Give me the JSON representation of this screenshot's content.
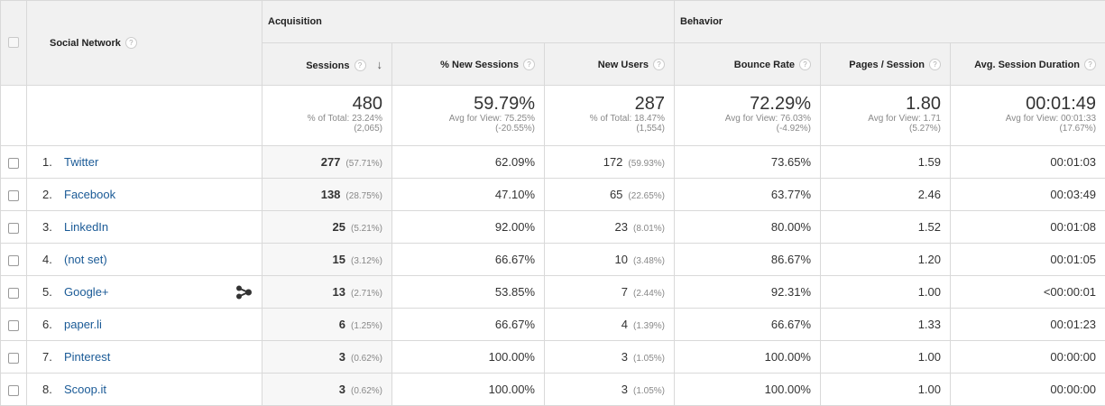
{
  "headers": {
    "dimension": "Social Network",
    "acquisition": "Acquisition",
    "behavior": "Behavior",
    "columns": [
      "Sessions",
      "% New Sessions",
      "New Users",
      "Bounce Rate",
      "Pages / Session",
      "Avg. Session Duration"
    ],
    "help_icon": "?",
    "sort_arrow": "↓"
  },
  "totals": [
    {
      "value": "480",
      "label": "% of Total: 23.24%",
      "detail": "(2,065)"
    },
    {
      "value": "59.79%",
      "label": "Avg for View: 75.25%",
      "detail": "(-20.55%)"
    },
    {
      "value": "287",
      "label": "% of Total: 18.47%",
      "detail": "(1,554)"
    },
    {
      "value": "72.29%",
      "label": "Avg for View: 76.03%",
      "detail": "(-4.92%)"
    },
    {
      "value": "1.80",
      "label": "Avg for View: 1.71",
      "detail": "(5.27%)"
    },
    {
      "value": "00:01:49",
      "label": "Avg for View: 00:01:33",
      "detail": "(17.67%)"
    }
  ],
  "rows": [
    {
      "index": "1.",
      "name": "Twitter",
      "sessions": "277",
      "sessions_pct": "(57.71%)",
      "new_sessions": "62.09%",
      "new_users": "172",
      "new_users_pct": "(59.93%)",
      "bounce_rate": "73.65%",
      "pages_per_session": "1.59",
      "avg_duration": "00:01:03"
    },
    {
      "index": "2.",
      "name": "Facebook",
      "sessions": "138",
      "sessions_pct": "(28.75%)",
      "new_sessions": "47.10%",
      "new_users": "65",
      "new_users_pct": "(22.65%)",
      "bounce_rate": "63.77%",
      "pages_per_session": "2.46",
      "avg_duration": "00:03:49"
    },
    {
      "index": "3.",
      "name": "LinkedIn",
      "sessions": "25",
      "sessions_pct": "(5.21%)",
      "new_sessions": "92.00%",
      "new_users": "23",
      "new_users_pct": "(8.01%)",
      "bounce_rate": "80.00%",
      "pages_per_session": "1.52",
      "avg_duration": "00:01:08"
    },
    {
      "index": "4.",
      "name": "(not set)",
      "sessions": "15",
      "sessions_pct": "(3.12%)",
      "new_sessions": "66.67%",
      "new_users": "10",
      "new_users_pct": "(3.48%)",
      "bounce_rate": "86.67%",
      "pages_per_session": "1.20",
      "avg_duration": "00:01:05"
    },
    {
      "index": "5.",
      "name": "Google+",
      "sessions": "13",
      "sessions_pct": "(2.71%)",
      "new_sessions": "53.85%",
      "new_users": "7",
      "new_users_pct": "(2.44%)",
      "bounce_rate": "92.31%",
      "pages_per_session": "1.00",
      "avg_duration": "<00:00:01",
      "has_flow_icon": true
    },
    {
      "index": "6.",
      "name": "paper.li",
      "sessions": "6",
      "sessions_pct": "(1.25%)",
      "new_sessions": "66.67%",
      "new_users": "4",
      "new_users_pct": "(1.39%)",
      "bounce_rate": "66.67%",
      "pages_per_session": "1.33",
      "avg_duration": "00:01:23"
    },
    {
      "index": "7.",
      "name": "Pinterest",
      "sessions": "3",
      "sessions_pct": "(0.62%)",
      "new_sessions": "100.00%",
      "new_users": "3",
      "new_users_pct": "(1.05%)",
      "bounce_rate": "100.00%",
      "pages_per_session": "1.00",
      "avg_duration": "00:00:00"
    },
    {
      "index": "8.",
      "name": "Scoop.it",
      "sessions": "3",
      "sessions_pct": "(0.62%)",
      "new_sessions": "100.00%",
      "new_users": "3",
      "new_users_pct": "(1.05%)",
      "bounce_rate": "100.00%",
      "pages_per_session": "1.00",
      "avg_duration": "00:00:00"
    }
  ],
  "icons": {
    "row_flow": "flow-visualization-icon",
    "help": "help-icon",
    "sort": "sort-descending-icon"
  },
  "colors": {
    "link": "#1a5a96",
    "header_bg": "#f1f1f1",
    "sorted_col_bg": "#f7f7f7"
  }
}
